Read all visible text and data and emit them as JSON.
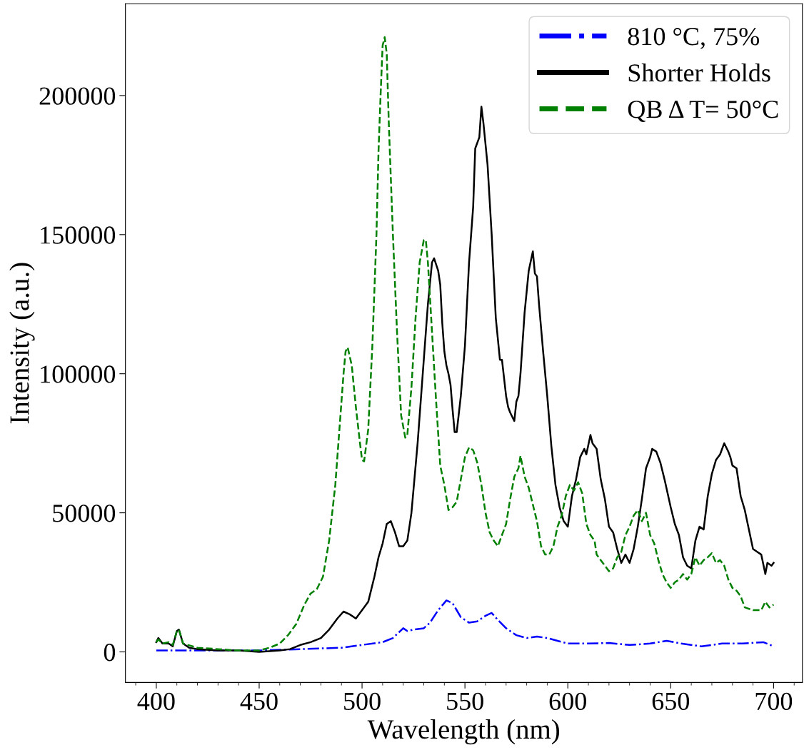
{
  "chart_data": {
    "type": "line",
    "xlabel": "Wavelength (nm)",
    "ylabel": "Intensity (a.u.)",
    "xlim": [
      385,
      714
    ],
    "ylim": [
      -11000,
      233000
    ],
    "xticks": [
      400,
      450,
      500,
      550,
      600,
      650,
      700
    ],
    "yticks": [
      0,
      50000,
      100000,
      150000,
      200000
    ],
    "grid": false,
    "legend": "top right",
    "marker": "none",
    "series": [
      {
        "name": "810 °C, 75%",
        "color": "#0000ff",
        "line_style": "dashdot",
        "x": [
          400,
          420,
          450,
          470,
          490,
          500,
          510,
          515,
          520,
          522,
          525,
          530,
          533,
          537,
          541,
          544,
          548,
          552,
          556,
          560,
          563,
          566,
          570,
          575,
          580,
          585,
          590,
          595,
          600,
          610,
          620,
          630,
          640,
          648,
          655,
          665,
          675,
          685,
          695,
          700
        ],
        "values": [
          500,
          500,
          500,
          1000,
          1500,
          2500,
          3500,
          5000,
          8500,
          7500,
          8000,
          8500,
          10500,
          15000,
          18500,
          17500,
          12500,
          10500,
          11000,
          13000,
          14000,
          11500,
          8500,
          6000,
          5000,
          5500,
          5000,
          4000,
          3000,
          3000,
          3200,
          2500,
          3000,
          4000,
          3000,
          2000,
          3000,
          3000,
          3500,
          2000
        ]
      },
      {
        "name": "Shorter Holds",
        "color": "#000000",
        "line_style": "solid",
        "x": [
          400,
          401,
          403,
          406,
          408,
          410,
          411,
          413,
          416,
          420,
          430,
          440,
          450,
          460,
          465,
          470,
          475,
          480,
          484,
          488,
          491,
          494,
          497,
          500,
          503,
          506,
          508,
          510,
          512,
          514,
          516,
          518,
          520,
          522,
          524,
          527,
          530,
          532,
          534,
          535,
          537,
          538,
          539,
          540,
          541,
          542,
          543,
          544,
          545,
          546,
          548,
          550,
          552,
          554,
          555,
          557,
          558,
          559,
          561,
          563,
          565,
          567,
          568,
          570,
          571,
          572,
          574,
          575,
          576,
          577,
          579,
          581,
          583,
          584,
          585,
          586,
          588,
          590,
          592,
          594,
          596,
          598,
          600,
          602,
          604,
          606,
          608,
          609,
          611,
          612,
          614,
          616,
          618,
          620,
          622,
          624,
          626,
          628,
          630,
          632,
          634,
          636,
          638,
          640,
          641,
          643,
          645,
          647,
          650,
          652,
          654,
          656,
          658,
          660,
          662,
          664,
          666,
          668,
          670,
          672,
          674,
          676,
          678,
          679,
          680,
          682,
          684,
          686,
          688,
          690,
          692,
          694,
          696,
          697,
          699,
          700
        ],
        "values": [
          3500,
          5000,
          3000,
          3000,
          2000,
          7500,
          8000,
          3000,
          1500,
          1000,
          500,
          500,
          0,
          500,
          1000,
          2500,
          3500,
          5000,
          8000,
          12000,
          14500,
          13500,
          12000,
          15000,
          18000,
          27000,
          34000,
          39000,
          46000,
          47000,
          43000,
          38000,
          38000,
          40000,
          50000,
          75000,
          105000,
          125000,
          140000,
          141500,
          137000,
          132000,
          118000,
          108000,
          103000,
          100000,
          96000,
          87000,
          79000,
          79000,
          92000,
          110000,
          140000,
          160000,
          181000,
          185000,
          196000,
          190000,
          175000,
          150000,
          120000,
          105000,
          105000,
          92000,
          88000,
          86000,
          83000,
          90000,
          92000,
          100000,
          122000,
          137000,
          144000,
          136000,
          135000,
          125000,
          108000,
          92000,
          74000,
          60000,
          52000,
          47000,
          45000,
          56000,
          62000,
          70000,
          73000,
          71000,
          78000,
          75000,
          73000,
          62000,
          55000,
          45000,
          43000,
          37000,
          32000,
          35000,
          32000,
          37000,
          45000,
          55000,
          66000,
          70000,
          73000,
          72000,
          68000,
          62000,
          52000,
          46000,
          42000,
          34000,
          31000,
          30000,
          40000,
          45000,
          44000,
          56000,
          64000,
          69000,
          71000,
          75000,
          72000,
          70000,
          67000,
          66000,
          56000,
          51000,
          44000,
          37000,
          36000,
          35000,
          28000,
          32000,
          31000,
          32000
        ]
      },
      {
        "name": "QB Δ T= 50°C",
        "color": "#008000",
        "line_style": "dashed",
        "x": [
          400,
          401,
          403,
          406,
          408,
          410,
          411,
          413,
          420,
          430,
          440,
          450,
          455,
          460,
          464,
          468,
          472,
          475,
          478,
          481,
          484,
          487,
          489,
          491,
          492,
          493,
          495,
          497,
          499,
          500,
          501,
          503,
          505,
          507,
          508,
          509,
          510,
          511,
          512,
          513,
          515,
          517,
          519,
          521,
          522,
          524,
          526,
          528,
          530,
          531,
          532,
          534,
          536,
          538,
          540,
          542,
          544,
          546,
          548,
          550,
          552,
          554,
          556,
          558,
          560,
          562,
          564,
          566,
          568,
          570,
          572,
          574,
          576,
          577,
          579,
          581,
          583,
          585,
          587,
          589,
          591,
          593,
          595,
          597,
          599,
          601,
          603,
          605,
          607,
          609,
          611,
          613,
          614,
          616,
          618,
          620,
          622,
          624,
          626,
          628,
          630,
          632,
          634,
          636,
          638,
          640,
          642,
          644,
          646,
          648,
          650,
          652,
          654,
          656,
          658,
          660,
          662,
          664,
          666,
          668,
          670,
          672,
          674,
          676,
          678,
          680,
          682,
          684,
          686,
          690,
          694,
          696,
          698,
          700
        ],
        "values": [
          3500,
          4500,
          3000,
          3500,
          2500,
          7500,
          8000,
          3000,
          1500,
          1000,
          500,
          500,
          1500,
          3000,
          6000,
          10000,
          17000,
          21000,
          22500,
          27000,
          40000,
          60000,
          80000,
          100000,
          108000,
          109500,
          103000,
          88000,
          75000,
          69000,
          68500,
          80000,
          110000,
          150000,
          180000,
          200000,
          218000,
          221000,
          215000,
          190000,
          150000,
          115000,
          85000,
          77000,
          78000,
          95000,
          120000,
          140000,
          148000,
          148000,
          140000,
          115000,
          90000,
          67000,
          60000,
          51000,
          52000,
          54000,
          62000,
          70000,
          73500,
          72500,
          68000,
          60000,
          50000,
          43000,
          40000,
          38000,
          42000,
          46000,
          55000,
          63000,
          66000,
          70500,
          63000,
          59000,
          53000,
          47000,
          38000,
          35000,
          35000,
          38000,
          45000,
          49000,
          56000,
          60000,
          58000,
          61000,
          57000,
          46000,
          42000,
          40000,
          35000,
          33000,
          31000,
          29000,
          30000,
          34000,
          36000,
          42000,
          45000,
          49000,
          51000,
          47000,
          50000,
          42000,
          39000,
          33000,
          28000,
          25000,
          23000,
          25000,
          26000,
          28000,
          26000,
          28000,
          34000,
          31000,
          33000,
          34000,
          35500,
          32000,
          33000,
          31000,
          26000,
          23000,
          22000,
          20000,
          16000,
          15000,
          15000,
          18000,
          16000,
          17000
        ]
      }
    ]
  }
}
